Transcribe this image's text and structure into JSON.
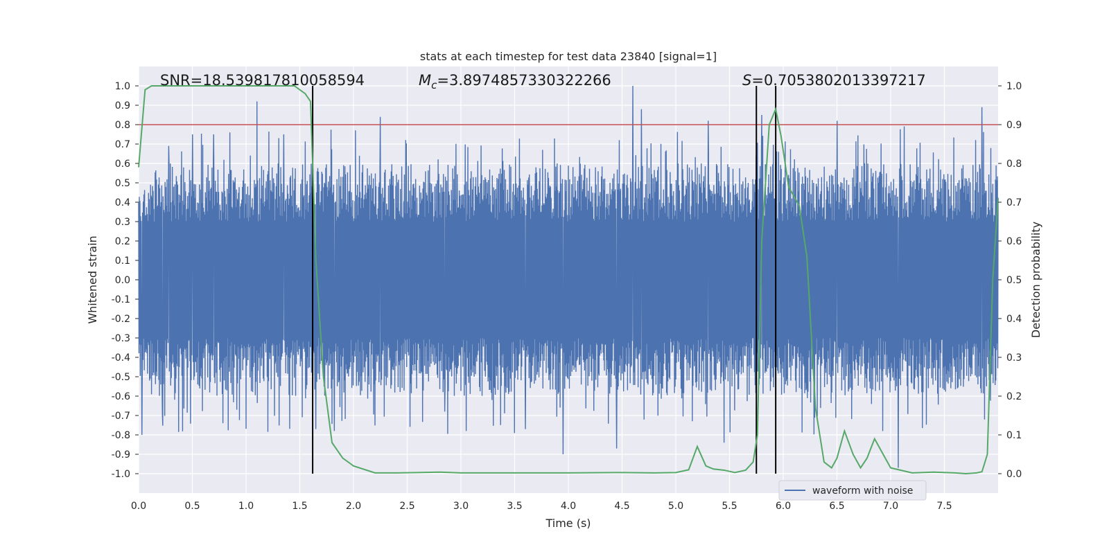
{
  "chart_data": {
    "type": "line",
    "title": "stats at each timestep for test data 23840 [signal=1]",
    "xlabel": "Time (s)",
    "ylabel": "Whitened strain",
    "y2label": "Detection probability",
    "xlim": [
      0.0,
      8.0
    ],
    "ylim": [
      -1.1,
      1.1
    ],
    "y2lim": [
      -0.05,
      1.05
    ],
    "xticks": [
      "0.0",
      "0.5",
      "1.0",
      "1.5",
      "2.0",
      "2.5",
      "3.0",
      "3.5",
      "4.0",
      "4.5",
      "5.0",
      "5.5",
      "6.0",
      "6.5",
      "7.0",
      "7.5"
    ],
    "yticks": [
      "1.0",
      "0.9",
      "0.8",
      "0.7",
      "0.6",
      "0.5",
      "0.4",
      "0.3",
      "0.2",
      "0.1",
      "0.0",
      "-0.1",
      "-0.2",
      "-0.3",
      "-0.4",
      "-0.5",
      "-0.6",
      "-0.7",
      "-0.8",
      "-0.9",
      "-1.0"
    ],
    "y2ticks": [
      "1.0",
      "0.9",
      "0.8",
      "0.7",
      "0.6",
      "0.5",
      "0.4",
      "0.3",
      "0.2",
      "0.1",
      "0.0"
    ],
    "annotations": {
      "snr": "SNR=18.539817810058594",
      "mc_symbol": "M",
      "mc_sub": "c",
      "mc_value": "=3.8974857330322266",
      "s_symbol": "S",
      "s_value": "=0.7053802013397217"
    },
    "legend": {
      "label": "waveform with noise",
      "location": "lower-right"
    },
    "threshold": {
      "y2": 0.9,
      "color": "#c44e52"
    },
    "vlines_x": [
      1.62,
      5.75,
      5.93
    ],
    "vline_ymin": -1.0,
    "vline_ymax": 1.0,
    "series": [
      {
        "name": "waveform with noise",
        "axis": "left",
        "color": "#4c72b0",
        "envelope": {
          "step": 0.1,
          "typical_abs": [
            0.52,
            0.6
          ]
        },
        "spikes": [
          {
            "x": 0.03,
            "y": -0.8
          },
          {
            "x": 0.22,
            "y": -0.7
          },
          {
            "x": 0.28,
            "y": 0.69
          },
          {
            "x": 0.5,
            "y": 0.75
          },
          {
            "x": 0.7,
            "y": 0.75
          },
          {
            "x": 0.85,
            "y": 0.76
          },
          {
            "x": 1.1,
            "y": 0.92
          },
          {
            "x": 1.35,
            "y": 0.75
          },
          {
            "x": 1.65,
            "y": -0.77
          },
          {
            "x": 1.82,
            "y": -0.78
          },
          {
            "x": 2.25,
            "y": 0.84
          },
          {
            "x": 2.85,
            "y": -0.68
          },
          {
            "x": 3.05,
            "y": -0.78
          },
          {
            "x": 3.6,
            "y": -0.77
          },
          {
            "x": 3.95,
            "y": -0.9
          },
          {
            "x": 4.45,
            "y": -0.87
          },
          {
            "x": 4.6,
            "y": 1.0
          },
          {
            "x": 4.68,
            "y": 0.88
          },
          {
            "x": 5.3,
            "y": 0.82
          },
          {
            "x": 5.45,
            "y": -0.84
          },
          {
            "x": 5.8,
            "y": 0.85
          },
          {
            "x": 6.5,
            "y": 0.82
          },
          {
            "x": 7.07,
            "y": -0.97
          },
          {
            "x": 7.85,
            "y": 0.89
          }
        ]
      },
      {
        "name": "detection probability",
        "axis": "right",
        "color": "#55a868",
        "x": [
          0.0,
          0.06,
          0.12,
          0.3,
          1.2,
          1.45,
          1.55,
          1.6,
          1.65,
          1.72,
          1.8,
          1.9,
          2.0,
          2.2,
          2.4,
          2.6,
          2.8,
          3.0,
          3.5,
          4.0,
          4.5,
          4.8,
          5.0,
          5.12,
          5.2,
          5.28,
          5.35,
          5.45,
          5.55,
          5.65,
          5.72,
          5.76,
          5.8,
          5.87,
          5.93,
          5.98,
          6.05,
          6.15,
          6.22,
          6.3,
          6.38,
          6.45,
          6.5,
          6.57,
          6.65,
          6.72,
          6.78,
          6.85,
          7.0,
          7.2,
          7.4,
          7.6,
          7.7,
          7.75,
          7.8,
          7.85,
          7.9,
          7.95,
          8.0
        ],
        "y": [
          0.79,
          0.99,
          1.0,
          1.0,
          1.0,
          1.0,
          0.98,
          0.96,
          0.55,
          0.25,
          0.08,
          0.04,
          0.02,
          0.002,
          0.002,
          0.003,
          0.004,
          0.002,
          0.002,
          0.002,
          0.003,
          0.002,
          0.003,
          0.01,
          0.07,
          0.02,
          0.012,
          0.009,
          0.003,
          0.009,
          0.03,
          0.1,
          0.6,
          0.9,
          0.94,
          0.87,
          0.74,
          0.69,
          0.56,
          0.17,
          0.03,
          0.015,
          0.04,
          0.11,
          0.05,
          0.015,
          0.04,
          0.09,
          0.015,
          0.002,
          0.004,
          0.002,
          0.0,
          0.001,
          0.002,
          0.005,
          0.05,
          0.5,
          0.71
        ]
      }
    ]
  }
}
